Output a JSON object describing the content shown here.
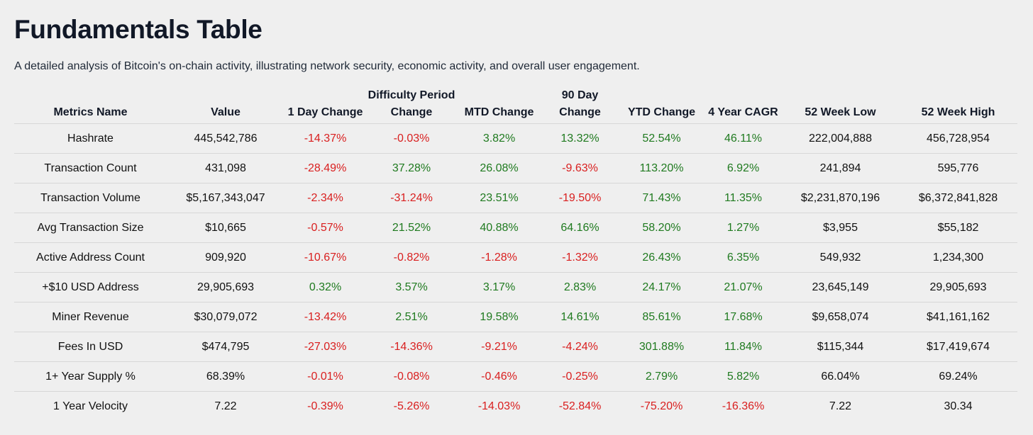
{
  "title": "Fundamentals Table",
  "subtitle": "A detailed analysis of Bitcoin's on-chain activity, illustrating network security, economic activity, and overall user engagement.",
  "columns": [
    "Metrics Name",
    "Value",
    "1 Day Change",
    "Difficulty Period Change",
    "MTD Change",
    "90 Day Change",
    "YTD Change",
    "4 Year CAGR",
    "52 Week Low",
    "52 Week High"
  ],
  "rows": [
    [
      "Hashrate",
      "445,542,786",
      "-14.37%",
      "-0.03%",
      "3.82%",
      "13.32%",
      "52.54%",
      "46.11%",
      "222,004,888",
      "456,728,954"
    ],
    [
      "Transaction Count",
      "431,098",
      "-28.49%",
      "37.28%",
      "26.08%",
      "-9.63%",
      "113.20%",
      "6.92%",
      "241,894",
      "595,776"
    ],
    [
      "Transaction Volume",
      "$5,167,343,047",
      "-2.34%",
      "-31.24%",
      "23.51%",
      "-19.50%",
      "71.43%",
      "11.35%",
      "$2,231,870,196",
      "$6,372,841,828"
    ],
    [
      "Avg Transaction Size",
      "$10,665",
      "-0.57%",
      "21.52%",
      "40.88%",
      "64.16%",
      "58.20%",
      "1.27%",
      "$3,955",
      "$55,182"
    ],
    [
      "Active Address Count",
      "909,920",
      "-10.67%",
      "-0.82%",
      "-1.28%",
      "-1.32%",
      "26.43%",
      "6.35%",
      "549,932",
      "1,234,300"
    ],
    [
      "+$10 USD Address",
      "29,905,693",
      "0.32%",
      "3.57%",
      "3.17%",
      "2.83%",
      "24.17%",
      "21.07%",
      "23,645,149",
      "29,905,693"
    ],
    [
      "Miner Revenue",
      "$30,079,072",
      "-13.42%",
      "2.51%",
      "19.58%",
      "14.61%",
      "85.61%",
      "17.68%",
      "$9,658,074",
      "$41,161,162"
    ],
    [
      "Fees In USD",
      "$474,795",
      "-27.03%",
      "-14.36%",
      "-9.21%",
      "-4.24%",
      "301.88%",
      "11.84%",
      "$115,344",
      "$17,419,674"
    ],
    [
      "1+ Year Supply %",
      "68.39%",
      "-0.01%",
      "-0.08%",
      "-0.46%",
      "-0.25%",
      "2.79%",
      "5.82%",
      "66.04%",
      "69.24%"
    ],
    [
      "1 Year Velocity",
      "7.22",
      "-0.39%",
      "-5.26%",
      "-14.03%",
      "-52.84%",
      "-75.20%",
      "-16.36%",
      "7.22",
      "30.34"
    ]
  ],
  "colors": {
    "positive": "#1f7a1f",
    "negative": "#d91f1f",
    "background": "#efefef"
  }
}
